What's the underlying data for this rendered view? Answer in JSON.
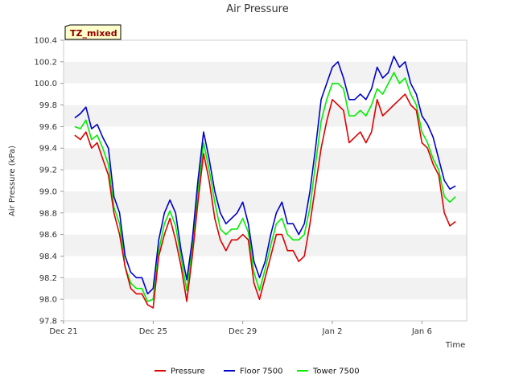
{
  "chart_data": {
    "type": "line",
    "title": "Air Pressure",
    "xlabel": "Time",
    "ylabel": "Air Pressure (kPa)",
    "badge": "TZ_mixed",
    "ylim": [
      97.8,
      100.4
    ],
    "xlim": [
      "2023-12-21",
      "2024-01-08"
    ],
    "y_ticks": [
      "97.8",
      "98.0",
      "98.2",
      "98.4",
      "98.6",
      "98.8",
      "99.0",
      "99.2",
      "99.4",
      "99.6",
      "99.8",
      "100.0",
      "100.2",
      "100.4"
    ],
    "x_ticks": [
      {
        "date": "2023-12-21",
        "label": "Dec 21"
      },
      {
        "date": "2023-12-25",
        "label": "Dec 25"
      },
      {
        "date": "2023-12-29",
        "label": "Dec 29"
      },
      {
        "date": "2024-01-02",
        "label": "Jan 2"
      },
      {
        "date": "2024-01-06",
        "label": "Jan 6"
      }
    ],
    "legend_position": "bottom",
    "grid": "horizontal bands",
    "colors": {
      "Pressure": "#dd0000",
      "Floor 7500": "#0000cc",
      "Tower 7500": "#00ee00"
    },
    "x": [
      "2023-12-21T12:00",
      "2023-12-21T18:00",
      "2023-12-22T00:00",
      "2023-12-22T06:00",
      "2023-12-22T12:00",
      "2023-12-22T18:00",
      "2023-12-23T00:00",
      "2023-12-23T06:00",
      "2023-12-23T12:00",
      "2023-12-23T18:00",
      "2023-12-24T00:00",
      "2023-12-24T06:00",
      "2023-12-24T12:00",
      "2023-12-24T18:00",
      "2023-12-25T00:00",
      "2023-12-25T06:00",
      "2023-12-25T12:00",
      "2023-12-25T18:00",
      "2023-12-26T00:00",
      "2023-12-26T06:00",
      "2023-12-26T12:00",
      "2023-12-26T18:00",
      "2023-12-27T00:00",
      "2023-12-27T06:00",
      "2023-12-27T12:00",
      "2023-12-27T18:00",
      "2023-12-28T00:00",
      "2023-12-28T06:00",
      "2023-12-28T12:00",
      "2023-12-28T18:00",
      "2023-12-29T00:00",
      "2023-12-29T06:00",
      "2023-12-29T12:00",
      "2023-12-29T18:00",
      "2023-12-30T00:00",
      "2023-12-30T06:00",
      "2023-12-30T12:00",
      "2023-12-30T18:00",
      "2023-12-31T00:00",
      "2023-12-31T06:00",
      "2023-12-31T12:00",
      "2023-12-31T18:00",
      "2024-01-01T00:00",
      "2024-01-01T06:00",
      "2024-01-01T12:00",
      "2024-01-01T18:00",
      "2024-01-02T00:00",
      "2024-01-02T06:00",
      "2024-01-02T12:00",
      "2024-01-02T18:00",
      "2024-01-03T00:00",
      "2024-01-03T06:00",
      "2024-01-03T12:00",
      "2024-01-03T18:00",
      "2024-01-04T00:00",
      "2024-01-04T06:00",
      "2024-01-04T12:00",
      "2024-01-04T18:00",
      "2024-01-05T00:00",
      "2024-01-05T06:00",
      "2024-01-05T12:00",
      "2024-01-05T18:00",
      "2024-01-06T00:00",
      "2024-01-06T06:00",
      "2024-01-06T12:00",
      "2024-01-06T18:00",
      "2024-01-07T00:00",
      "2024-01-07T06:00",
      "2024-01-07T12:00"
    ],
    "series": [
      {
        "name": "Pressure",
        "values": [
          99.52,
          99.48,
          99.55,
          99.4,
          99.45,
          99.3,
          99.15,
          98.8,
          98.6,
          98.3,
          98.1,
          98.05,
          98.05,
          97.95,
          97.92,
          98.4,
          98.6,
          98.75,
          98.55,
          98.3,
          97.98,
          98.4,
          98.9,
          99.35,
          99.1,
          98.75,
          98.55,
          98.45,
          98.55,
          98.55,
          98.6,
          98.55,
          98.15,
          98.0,
          98.2,
          98.4,
          98.6,
          98.6,
          98.45,
          98.45,
          98.35,
          98.4,
          98.7,
          99.05,
          99.4,
          99.65,
          99.85,
          99.8,
          99.75,
          99.45,
          99.5,
          99.55,
          99.45,
          99.55,
          99.85,
          99.7,
          99.75,
          99.8,
          99.85,
          99.9,
          99.8,
          99.75,
          99.45,
          99.4,
          99.25,
          99.15,
          98.8,
          98.68,
          98.72
        ]
      },
      {
        "name": "Floor 7500",
        "values": [
          99.68,
          99.72,
          99.78,
          99.58,
          99.62,
          99.5,
          99.4,
          98.95,
          98.8,
          98.4,
          98.25,
          98.2,
          98.2,
          98.05,
          98.1,
          98.55,
          98.8,
          98.92,
          98.8,
          98.45,
          98.18,
          98.55,
          99.1,
          99.55,
          99.3,
          99.0,
          98.8,
          98.7,
          98.75,
          98.8,
          98.9,
          98.7,
          98.35,
          98.2,
          98.35,
          98.6,
          98.8,
          98.9,
          98.7,
          98.7,
          98.6,
          98.7,
          99.0,
          99.4,
          99.85,
          100.0,
          100.15,
          100.2,
          100.05,
          99.85,
          99.85,
          99.9,
          99.85,
          99.95,
          100.15,
          100.05,
          100.1,
          100.25,
          100.15,
          100.2,
          100.0,
          99.9,
          99.7,
          99.62,
          99.5,
          99.3,
          99.1,
          99.02,
          99.05
        ]
      },
      {
        "name": "Tower 7500",
        "values": [
          99.6,
          99.58,
          99.66,
          99.48,
          99.52,
          99.4,
          99.25,
          98.85,
          98.7,
          98.3,
          98.15,
          98.1,
          98.1,
          97.98,
          98.0,
          98.45,
          98.7,
          98.82,
          98.68,
          98.38,
          98.08,
          98.48,
          99.0,
          99.45,
          99.2,
          98.9,
          98.65,
          98.6,
          98.65,
          98.65,
          98.75,
          98.62,
          98.25,
          98.08,
          98.28,
          98.5,
          98.7,
          98.75,
          98.6,
          98.55,
          98.55,
          98.6,
          98.85,
          99.25,
          99.65,
          99.85,
          100.0,
          100.0,
          99.95,
          99.7,
          99.7,
          99.75,
          99.7,
          99.8,
          99.95,
          99.9,
          100.0,
          100.1,
          100.0,
          100.05,
          99.9,
          99.8,
          99.55,
          99.45,
          99.3,
          99.2,
          98.95,
          98.9,
          98.95
        ]
      }
    ]
  }
}
